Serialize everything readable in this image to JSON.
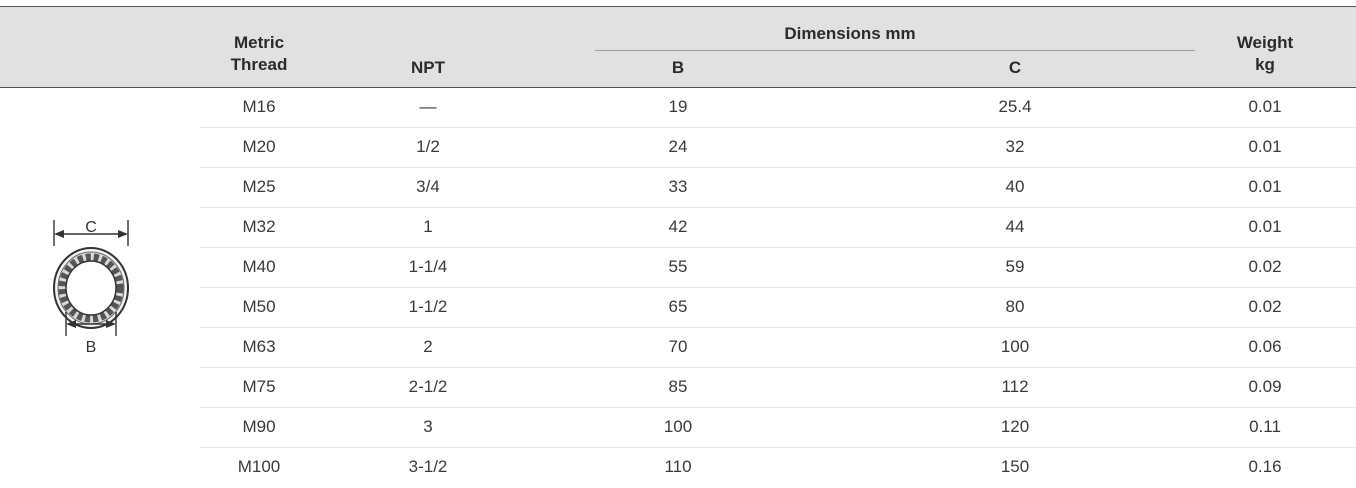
{
  "header": {
    "metric_line1": "Metric",
    "metric_line2": "Thread",
    "npt": "NPT",
    "dimensions": "Dimensions mm",
    "b": "B",
    "c": "C",
    "weight_line1": "Weight",
    "weight_line2": "kg"
  },
  "diagram": {
    "label_c": "C",
    "label_b": "B",
    "icon": "ring-seal-diagram-icon"
  },
  "rows": [
    {
      "thread": "M16",
      "npt": "—",
      "b": "19",
      "c": "25.4",
      "weight": "0.01"
    },
    {
      "thread": "M20",
      "npt": "1/2",
      "b": "24",
      "c": "32",
      "weight": "0.01"
    },
    {
      "thread": "M25",
      "npt": "3/4",
      "b": "33",
      "c": "40",
      "weight": "0.01"
    },
    {
      "thread": "M32",
      "npt": "1",
      "b": "42",
      "c": "44",
      "weight": "0.01"
    },
    {
      "thread": "M40",
      "npt": "1-1/4",
      "b": "55",
      "c": "59",
      "weight": "0.02"
    },
    {
      "thread": "M50",
      "npt": "1-1/2",
      "b": "65",
      "c": "80",
      "weight": "0.02"
    },
    {
      "thread": "M63",
      "npt": "2",
      "b": "70",
      "c": "100",
      "weight": "0.06"
    },
    {
      "thread": "M75",
      "npt": "2-1/2",
      "b": "85",
      "c": "112",
      "weight": "0.09"
    },
    {
      "thread": "M90",
      "npt": "3",
      "b": "100",
      "c": "120",
      "weight": "0.11"
    },
    {
      "thread": "M100",
      "npt": "3-1/2",
      "b": "110",
      "c": "150",
      "weight": "0.16"
    }
  ]
}
